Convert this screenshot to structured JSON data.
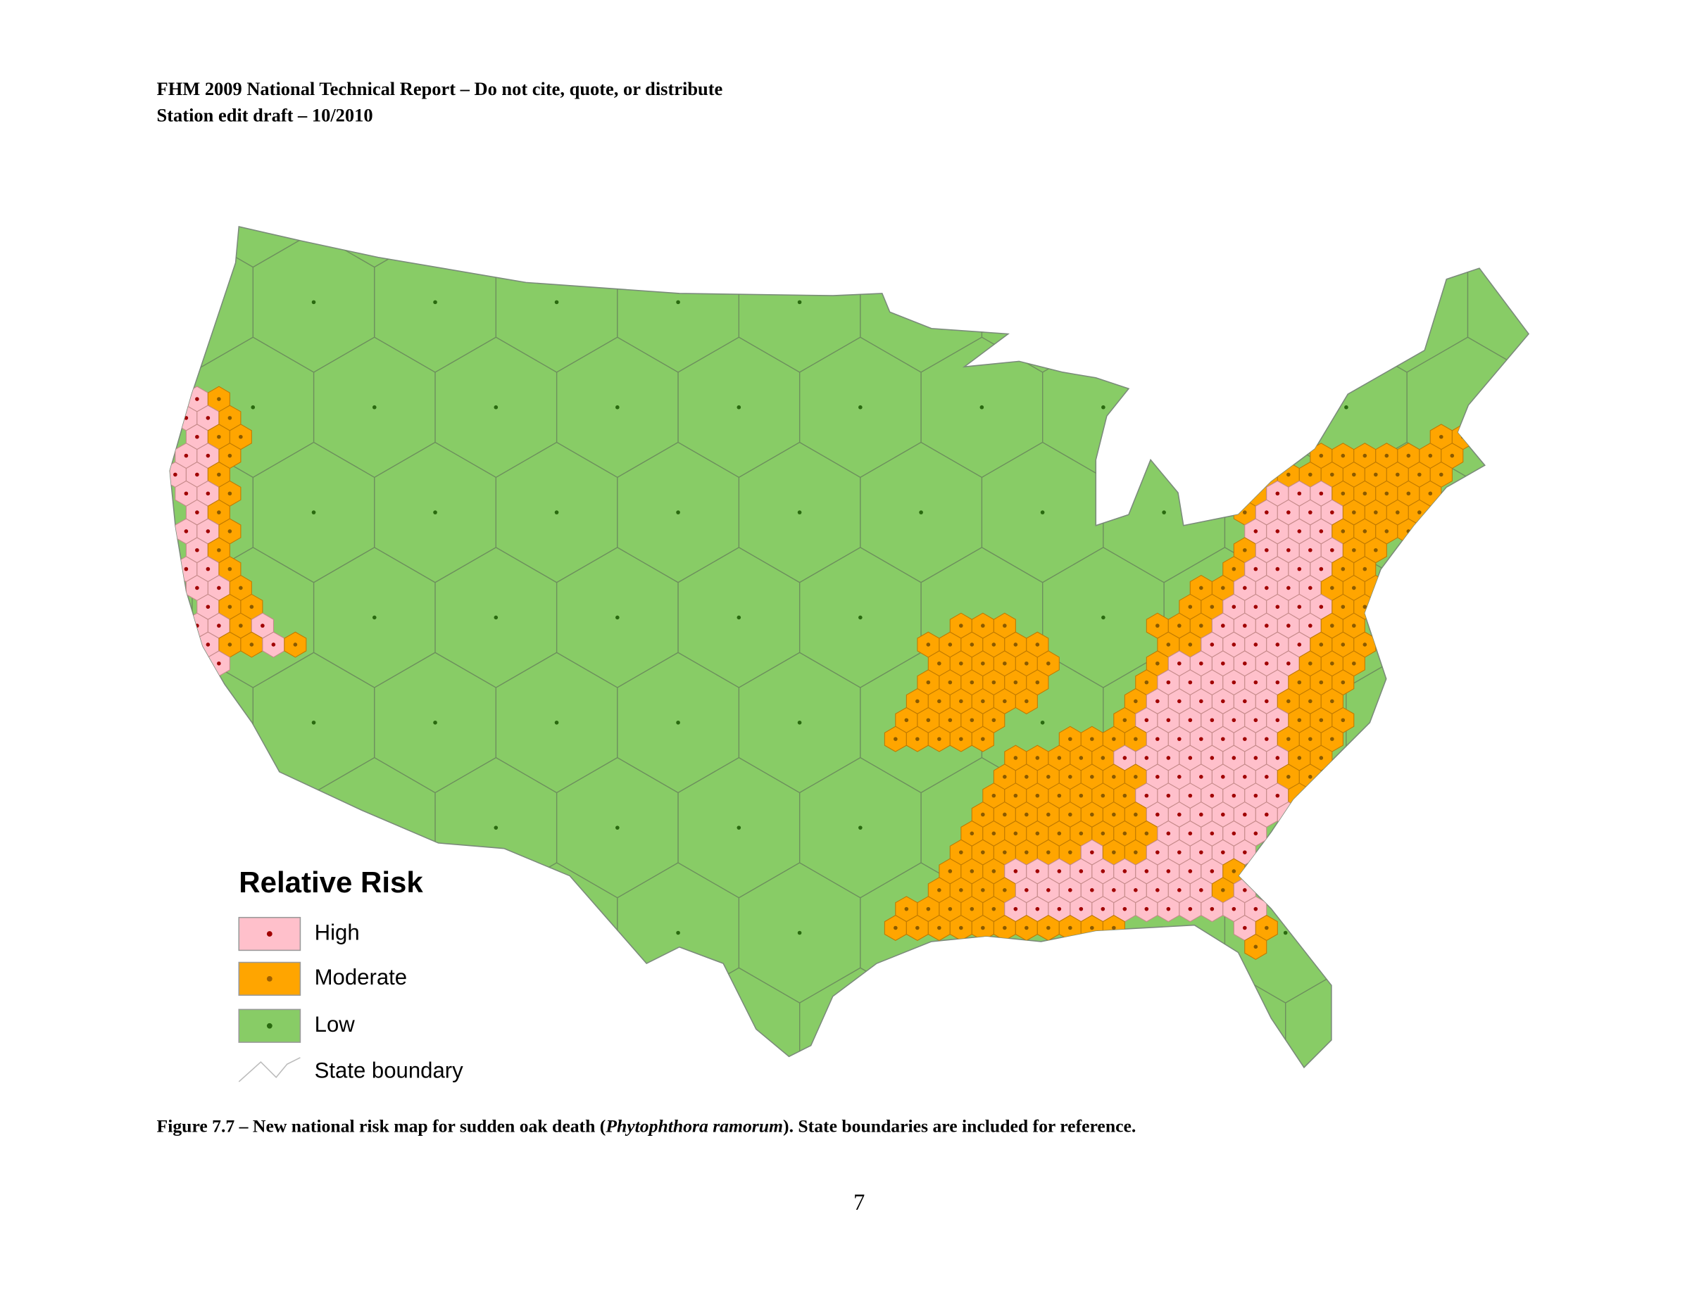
{
  "header": {
    "line1": "FHM 2009 National Technical Report – Do not cite, quote, or distribute",
    "line2": "Station edit draft – 10/2010"
  },
  "legend": {
    "title": "Relative Risk",
    "items": [
      "High",
      "Moderate",
      "Low",
      "State boundary"
    ]
  },
  "caption": {
    "prefix": "Figure 7.7 – New national risk map for sudden oak death (",
    "species": "Phytophthora ramorum",
    "suffix": "). State boundaries are included for reference."
  },
  "page_number": "7"
}
